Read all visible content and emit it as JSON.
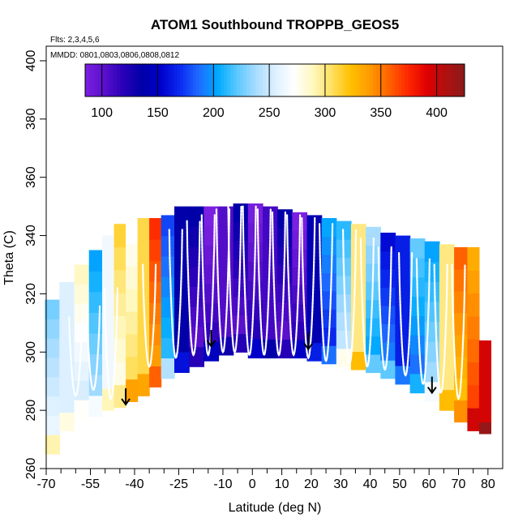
{
  "chart_data": {
    "type": "heatmap",
    "title": "ATOM1 Southbound TROPPB_GEOS5",
    "subtitle_flights": "Flts: 2,3,4,5,6",
    "subtitle_dates": "MMDD: 0801,0803,0806,0808,0812",
    "xlabel": "Latitude (deg N)",
    "ylabel": "Theta (C)",
    "xlim": [
      -70,
      85
    ],
    "ylim": [
      260,
      405
    ],
    "x_ticks": [
      -70,
      -55,
      -40,
      -25,
      -10,
      0,
      10,
      20,
      30,
      40,
      50,
      60,
      70,
      80
    ],
    "x_minor_ticks": [
      -65,
      -60,
      -50,
      -45,
      -35,
      -30,
      -20,
      -15,
      -5,
      5,
      15,
      25,
      35,
      45,
      55,
      65,
      75
    ],
    "y_ticks": [
      260,
      280,
      300,
      320,
      340,
      360,
      380,
      400
    ],
    "colorbar": {
      "range": [
        85,
        425
      ],
      "ticks": [
        100,
        150,
        200,
        250,
        300,
        350,
        400
      ],
      "colors": [
        "#7b1fe0",
        "#5a10cc",
        "#2a00b8",
        "#0000a8",
        "#0000cc",
        "#0a2af0",
        "#1e6cff",
        "#00aaff",
        "#5ac8ff",
        "#a8dcff",
        "#dcf0ff",
        "#ffffff",
        "#fff8c0",
        "#ffe060",
        "#ffc000",
        "#ff9a00",
        "#ff6400",
        "#ff2800",
        "#e00000",
        "#b01010",
        "#8b1a1a"
      ]
    },
    "columns": [
      {
        "lat": -68,
        "bottom": 265,
        "top": 318,
        "value": 255
      },
      {
        "lat": -63,
        "bottom": 273,
        "top": 324,
        "value": 255
      },
      {
        "lat": -58,
        "bottom": 277,
        "top": 330,
        "value": 260
      },
      {
        "lat": -53,
        "bottom": 278,
        "top": 335,
        "value": 230
      },
      {
        "lat": -49,
        "bottom": 280,
        "top": 340,
        "value": 265
      },
      {
        "lat": -45,
        "bottom": 281,
        "top": 344,
        "value": 285
      },
      {
        "lat": -41,
        "bottom": 283,
        "top": 345,
        "value": 300
      },
      {
        "lat": -37,
        "bottom": 285,
        "top": 346,
        "value": 310
      },
      {
        "lat": -33,
        "bottom": 288,
        "top": 346,
        "value": 345
      },
      {
        "lat": -29,
        "bottom": 291,
        "top": 347,
        "value": 205
      },
      {
        "lat": -24,
        "bottom": 293,
        "top": 350,
        "value": 135
      },
      {
        "lat": -19,
        "bottom": 295,
        "top": 350,
        "value": 108
      },
      {
        "lat": -14,
        "bottom": 297,
        "top": 350,
        "value": 110
      },
      {
        "lat": -9,
        "bottom": 299,
        "top": 350,
        "value": 105
      },
      {
        "lat": -4,
        "bottom": 300,
        "top": 351,
        "value": 108
      },
      {
        "lat": 1,
        "bottom": 298,
        "top": 351,
        "value": 115
      },
      {
        "lat": 6,
        "bottom": 298,
        "top": 350,
        "value": 110
      },
      {
        "lat": 11,
        "bottom": 298,
        "top": 349,
        "value": 108
      },
      {
        "lat": 16,
        "bottom": 298,
        "top": 348,
        "value": 112
      },
      {
        "lat": 21,
        "bottom": 297,
        "top": 347,
        "value": 140
      },
      {
        "lat": 26,
        "bottom": 296,
        "top": 346,
        "value": 175
      },
      {
        "lat": 31,
        "bottom": 295,
        "top": 345,
        "value": 240
      },
      {
        "lat": 36,
        "bottom": 294,
        "top": 344,
        "value": 300
      },
      {
        "lat": 41,
        "bottom": 293,
        "top": 343,
        "value": 210
      },
      {
        "lat": 46,
        "bottom": 291,
        "top": 341,
        "value": 185
      },
      {
        "lat": 51,
        "bottom": 289,
        "top": 340,
        "value": 165
      },
      {
        "lat": 56,
        "bottom": 286,
        "top": 339,
        "value": 195
      },
      {
        "lat": 61,
        "bottom": 283,
        "top": 338,
        "value": 230
      },
      {
        "lat": 66,
        "bottom": 280,
        "top": 337,
        "value": 300
      },
      {
        "lat": 71,
        "bottom": 276,
        "top": 336,
        "value": 330
      },
      {
        "lat": 75,
        "bottom": 273,
        "top": 336,
        "value": 360
      },
      {
        "lat": 79,
        "bottom": 272,
        "top": 304,
        "value": 395
      }
    ],
    "profiles": [
      {
        "lat": -60,
        "top": 312,
        "bottom": 285
      },
      {
        "lat": -54,
        "top": 316,
        "bottom": 287
      },
      {
        "lat": -48,
        "top": 322,
        "bottom": 284
      },
      {
        "lat": -35,
        "top": 330,
        "bottom": 295
      },
      {
        "lat": -26,
        "top": 342,
        "bottom": 298
      },
      {
        "lat": -20,
        "top": 345,
        "bottom": 299
      },
      {
        "lat": -15,
        "top": 347,
        "bottom": 299
      },
      {
        "lat": -10,
        "top": 349,
        "bottom": 300
      },
      {
        "lat": -6,
        "top": 350,
        "bottom": 300
      },
      {
        "lat": -1,
        "top": 350,
        "bottom": 299
      },
      {
        "lat": 4,
        "top": 349,
        "bottom": 299
      },
      {
        "lat": 9,
        "top": 348,
        "bottom": 299
      },
      {
        "lat": 14,
        "top": 347,
        "bottom": 299
      },
      {
        "lat": 19,
        "top": 346,
        "bottom": 298
      },
      {
        "lat": 25,
        "top": 344,
        "bottom": 297
      },
      {
        "lat": 33,
        "top": 342,
        "bottom": 296
      },
      {
        "lat": 39,
        "top": 339,
        "bottom": 295
      },
      {
        "lat": 45,
        "top": 336,
        "bottom": 294
      },
      {
        "lat": 52,
        "top": 334,
        "bottom": 292
      },
      {
        "lat": 58,
        "top": 332,
        "bottom": 289
      },
      {
        "lat": 64,
        "top": 330,
        "bottom": 286
      },
      {
        "lat": 70,
        "top": 330,
        "bottom": 284
      }
    ],
    "arrows": [
      {
        "lat": -43,
        "theta": 282
      },
      {
        "lat": -14,
        "theta": 302
      },
      {
        "lat": 19,
        "theta": 301
      },
      {
        "lat": 61,
        "theta": 286
      }
    ]
  }
}
